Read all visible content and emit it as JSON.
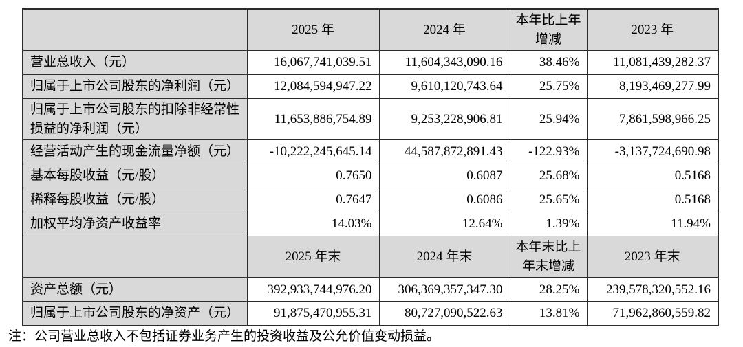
{
  "table": {
    "rows": [
      {
        "type": "header",
        "cells": [
          "",
          "2025 年",
          "2024 年",
          "本年比上年\n增减",
          "2023 年"
        ]
      },
      {
        "type": "data",
        "cells": [
          "营业总收入（元）",
          "16,067,741,039.51",
          "11,604,343,090.16",
          "38.46%",
          "11,081,439,282.37"
        ]
      },
      {
        "type": "data",
        "cells": [
          "归属于上市公司股东的净利润（元）",
          "12,084,594,947.22",
          "9,610,120,743.64",
          "25.75%",
          "8,193,469,277.99"
        ]
      },
      {
        "type": "data",
        "cells": [
          "归属于上市公司股东的扣除非经常性\n损益的净利润（元）",
          "11,653,886,754.89",
          "9,253,228,906.81",
          "25.94%",
          "7,861,598,966.25"
        ]
      },
      {
        "type": "data",
        "cells": [
          "经营活动产生的现金流量净额（元）",
          "-10,222,245,645.14",
          "44,587,872,891.43",
          "-122.93%",
          "-3,137,724,690.98"
        ]
      },
      {
        "type": "data",
        "cells": [
          "基本每股收益（元/股）",
          "0.7650",
          "0.6087",
          "25.68%",
          "0.5168"
        ]
      },
      {
        "type": "data",
        "cells": [
          "稀释每股收益（元/股）",
          "0.7647",
          "0.6086",
          "25.65%",
          "0.5168"
        ]
      },
      {
        "type": "data",
        "cells": [
          "加权平均净资产收益率",
          "14.03%",
          "12.64%",
          "1.39%",
          "11.94%"
        ]
      },
      {
        "type": "header",
        "cells": [
          "",
          "2025 年末",
          "2024 年末",
          "本年末比上\n年末增减",
          "2023 年末"
        ]
      },
      {
        "type": "data",
        "cells": [
          "资产总额（元）",
          "392,933,744,976.20",
          "306,369,357,347.30",
          "28.25%",
          "239,578,320,552.16"
        ]
      },
      {
        "type": "data",
        "cells": [
          "归属于上市公司股东的净资产（元）",
          "91,875,470,955.31",
          "80,727,090,522.63",
          "13.81%",
          "71,962,860,559.82"
        ]
      }
    ]
  },
  "note": "注：公司营业总收入不包括证券业务产生的投资收益及公允价值变动损益。",
  "colors": {
    "header_bg": "#d9d9d9",
    "border": "#2b2b2b",
    "text": "#000000",
    "background": "#ffffff"
  }
}
